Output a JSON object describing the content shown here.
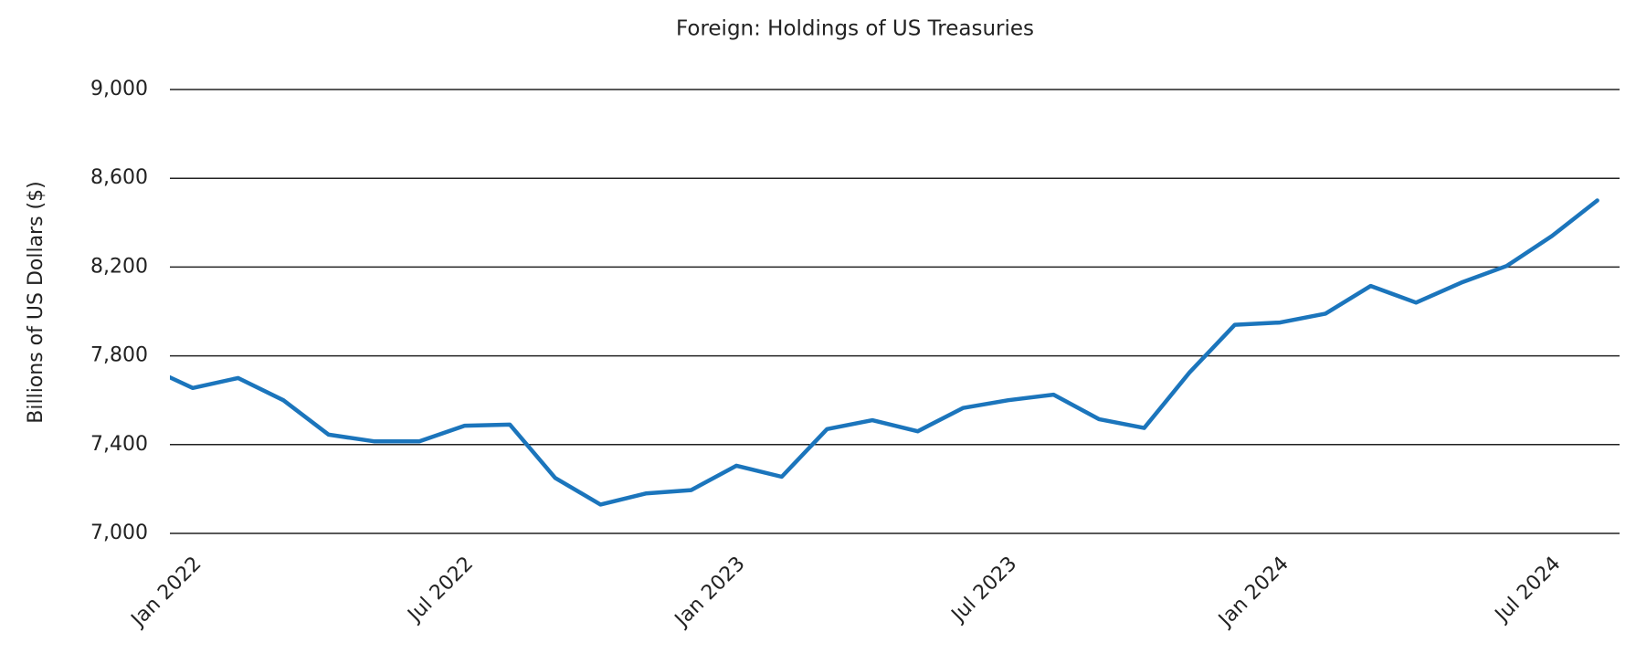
{
  "chart_data": {
    "type": "line",
    "title": "Foreign: Holdings of US Treasuries",
    "y_label": "Billions  of US Dollars ($)",
    "categories": [
      null,
      "Jan 2022",
      null,
      null,
      null,
      null,
      null,
      "Jul 2022",
      null,
      null,
      null,
      null,
      null,
      "Jan 2023",
      null,
      null,
      null,
      null,
      null,
      "Jul 2023",
      null,
      null,
      null,
      null,
      null,
      "Jan 2024",
      null,
      null,
      null,
      null,
      null,
      "Jul 2024",
      null
    ],
    "series": [
      {
        "color": "#1b75bc",
        "values": [
          7750,
          7655,
          7700,
          7600,
          7445,
          7415,
          7415,
          7485,
          7490,
          7250,
          7130,
          7180,
          7195,
          7305,
          7255,
          7470,
          7510,
          7460,
          7565,
          7600,
          7625,
          7515,
          7475,
          7725,
          7940,
          7950,
          7990,
          8115,
          8040,
          8130,
          8205,
          8340,
          8500
        ]
      }
    ],
    "ylim": [
      7000,
      9000
    ],
    "yticks": [
      {
        "value": 7000,
        "label": "7,000"
      },
      {
        "value": 7400,
        "label": "7,400"
      },
      {
        "value": 7800,
        "label": "7,800"
      },
      {
        "value": 8200,
        "label": "8,200"
      },
      {
        "value": 8600,
        "label": "8,600"
      },
      {
        "value": 9000,
        "label": "9,000"
      }
    ],
    "grid": true
  }
}
